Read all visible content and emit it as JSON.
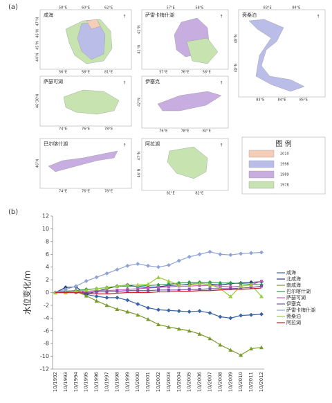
{
  "chart_data": [
    {
      "type": "map",
      "label": "(a)",
      "panels": [
        {
          "name": "咸海",
          "top": [
            "58°E",
            "60°E",
            "62°E"
          ],
          "left": [
            "47°N",
            "46°N",
            "45°N",
            "44°N"
          ],
          "bottom": [
            "56°E",
            "58°E",
            "81°E"
          ]
        },
        {
          "name": "萨雷卡梅什湖",
          "top": [
            "57°E",
            "58°E"
          ],
          "left": [
            "42°N",
            "41°N"
          ],
          "bottom": [
            "57°E",
            "76°E",
            "58°E"
          ]
        },
        {
          "name": "斋桑泊",
          "top": [
            "83°E",
            "84°E"
          ],
          "left": [
            "48°N",
            "48°N"
          ],
          "bottom": [
            "83°E",
            "84°E",
            "85°E"
          ]
        },
        {
          "name": "萨瑟可湖",
          "top": [],
          "left": [
            "46°30'N"
          ],
          "bottom": [
            "74°E",
            "76°E",
            "78°E"
          ]
        },
        {
          "name": "伊塞克",
          "top": [],
          "left": [
            "42°N"
          ],
          "bottom": [
            "76°E",
            "78°E",
            "82°E"
          ]
        },
        {
          "name": "巴尔喀什湖",
          "top": [],
          "left": [
            "46°N"
          ],
          "bottom": [
            "74°E",
            "76°E",
            "78°E"
          ]
        },
        {
          "name": "阿拉湖",
          "top": [],
          "left": [
            "47°N",
            "46°N"
          ],
          "bottom": [
            "81°E",
            "82°E"
          ]
        }
      ],
      "legend": {
        "title": "图 例",
        "items": [
          {
            "label": "2010",
            "color": "#f6cdb7"
          },
          {
            "label": "1998",
            "color": "#b9bde8"
          },
          {
            "label": "1989",
            "color": "#c7ade0"
          },
          {
            "label": "1978",
            "color": "#c6e3b0"
          }
        ]
      }
    },
    {
      "type": "line",
      "label": "(b)",
      "y_label": "水位变化/m",
      "categories": [
        "10/1992",
        "10/1993",
        "10/1994",
        "10/1995",
        "10/1996",
        "10/1997",
        "10/1998",
        "10/1999",
        "10/2000",
        "10/2001",
        "10/2002",
        "10/2003",
        "10/2004",
        "10/2005",
        "10/2006",
        "10/2007",
        "10/2008",
        "10/2009",
        "10/2010",
        "10/2011",
        "10/2012"
      ],
      "ylim": [
        -12,
        12
      ],
      "yticks": [
        -12,
        -10,
        -8,
        -6,
        -4,
        -2,
        0,
        2,
        4,
        6,
        8,
        10,
        12
      ],
      "grid": false,
      "series": [
        {
          "name": "咸海",
          "color": "#3b64a8",
          "marker": "diamond",
          "values": [
            0,
            0.2,
            0.3,
            -0.3,
            -0.6,
            -0.8,
            -0.8,
            -1.2,
            -1.8,
            -2.4,
            -2.7,
            -2.8,
            -2.9,
            -3.0,
            -2.9,
            -3.2,
            -3.8,
            -4.0,
            -3.6,
            -3.5,
            -3.4
          ]
        },
        {
          "name": "北咸海",
          "color": "#1f3a78",
          "marker": "diamond",
          "values": [
            0,
            0.8,
            0.9,
            -0.3,
            0.2,
            0.6,
            1.0,
            1.2,
            0.9,
            0.8,
            0.9,
            1.1,
            1.2,
            1.3,
            1.4,
            1.3,
            1.2,
            1.4,
            1.5,
            1.6,
            1.7
          ]
        },
        {
          "name": "南咸海",
          "color": "#7a9a2a",
          "marker": "triangle",
          "values": [
            0,
            0,
            0.2,
            -0.5,
            -1.3,
            -2.0,
            -2.6,
            -3.0,
            -3.5,
            -4.2,
            -5.0,
            -5.4,
            -5.7,
            -6.0,
            -6.5,
            -7.2,
            -8.2,
            -9.0,
            -9.8,
            -8.8,
            -8.6
          ]
        },
        {
          "name": "巴尔喀什湖",
          "color": "#2f9a4f",
          "marker": "diamond",
          "values": [
            0,
            0.2,
            0.3,
            0.5,
            0.6,
            0.8,
            1.0,
            1.0,
            1.0,
            1.1,
            1.2,
            1.3,
            1.5,
            1.6,
            1.6,
            1.6,
            1.5,
            1.5,
            1.4,
            1.3,
            1.2
          ]
        },
        {
          "name": "萨瑟可湖",
          "color": "#c55fb8",
          "marker": "square",
          "values": [
            0,
            0.1,
            0.2,
            0.2,
            0.3,
            0.3,
            0.4,
            0.5,
            0.6,
            0.7,
            0.8,
            0.9,
            1.0,
            1.0,
            1.1,
            1.1,
            1.0,
            0.9,
            1.0,
            1.2,
            1.8
          ]
        },
        {
          "name": "伊塞克",
          "color": "#7b4fa8",
          "marker": "square",
          "values": [
            0,
            0,
            0,
            0,
            0.1,
            0.1,
            0.2,
            0.3,
            0.3,
            0.3,
            0.4,
            0.4,
            0.4,
            0.5,
            0.5,
            0.6,
            0.6,
            0.6,
            0.7,
            0.8,
            1.0
          ]
        },
        {
          "name": "萨雷卡梅什湖",
          "color": "#8fa3d6",
          "marker": "diamond",
          "values": [
            0,
            0.5,
            1.0,
            1.8,
            2.4,
            3.0,
            3.6,
            4.2,
            4.5,
            4.2,
            4.0,
            4.3,
            5.0,
            5.6,
            6.0,
            6.4,
            6.0,
            5.9,
            6.1,
            6.2,
            6.3
          ]
        },
        {
          "name": "斋桑泊",
          "color": "#9acd3a",
          "marker": "triangle",
          "values": [
            0,
            0,
            0.2,
            0.4,
            0.6,
            0.8,
            1.0,
            1.2,
            1.2,
            1.3,
            2.4,
            1.8,
            1.2,
            1.2,
            1.4,
            1.3,
            0.6,
            -0.6,
            1.0,
            1.2,
            -0.6
          ]
        },
        {
          "name": "阿拉湖",
          "color": "#d0202b",
          "marker": "none",
          "values": [
            0,
            0,
            0,
            -0.1,
            -0.2,
            -0.2,
            -0.1,
            0,
            0,
            0,
            0.1,
            0.1,
            0.2,
            0.2,
            0.3,
            0.3,
            0.4,
            0.5,
            0.5,
            0.6,
            0.7
          ]
        }
      ]
    }
  ]
}
